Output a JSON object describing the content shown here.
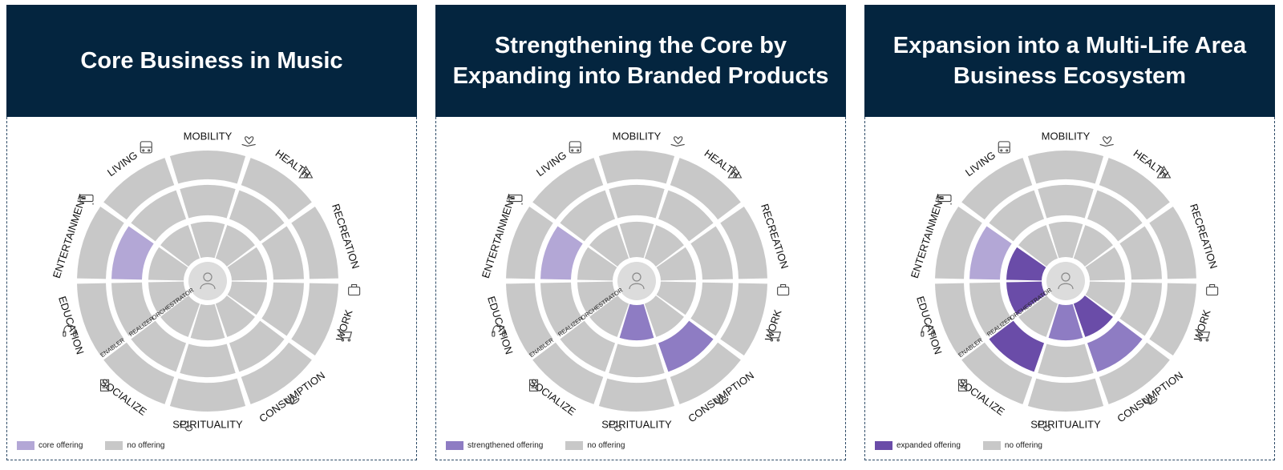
{
  "areas": [
    "MOBILITY",
    "HEALTH",
    "RECREATION",
    "WORK",
    "CONSUMPTION",
    "SPIRITUALITY",
    "SOCIALIZE",
    "EDUCATION",
    "ENTERTAINMENT",
    "LIVING"
  ],
  "area_icons": [
    "bus-icon",
    "heart-hand-icon",
    "tent-icon",
    "briefcase-icon",
    "cart-icon",
    "lotus-icon",
    "chat-bubbles-icon",
    "book-icon",
    "headphones-icon",
    "bed-icon"
  ],
  "ring_labels": [
    "ENABLER",
    "REALIZER",
    "ORCHESTRATOR"
  ],
  "colors": {
    "no_offering": "#c8c8c8",
    "core": "#b3a7d6",
    "strengthened": "#8e7cc3",
    "expanded": "#6a4ca8",
    "header": "#04253f"
  },
  "panels": [
    {
      "title": "Core Business in Music",
      "legend": [
        {
          "label": "core offering",
          "color": "#b3a7d6"
        },
        {
          "label": "no offering",
          "color": "#c8c8c8"
        }
      ],
      "highlights": [
        {
          "area": "ENTERTAINMENT",
          "ring": "REALIZER",
          "color": "#b3a7d6"
        }
      ]
    },
    {
      "title": "Strengthening the Core by Expanding into Branded Products",
      "legend": [
        {
          "label": "strengthened offering",
          "color": "#8e7cc3"
        },
        {
          "label": "no offering",
          "color": "#c8c8c8"
        }
      ],
      "highlights": [
        {
          "area": "ENTERTAINMENT",
          "ring": "REALIZER",
          "color": "#b3a7d6"
        },
        {
          "area": "SPIRITUALITY",
          "ring": "ORCHESTRATOR",
          "color": "#8e7cc3"
        },
        {
          "area": "CONSUMPTION",
          "ring": "REALIZER",
          "color": "#8e7cc3"
        }
      ]
    },
    {
      "title": "Expansion into a Multi-Life Area Business Ecosystem",
      "legend": [
        {
          "label": "expanded offering",
          "color": "#6a4ca8"
        },
        {
          "label": "no offering",
          "color": "#c8c8c8"
        }
      ],
      "highlights": [
        {
          "area": "ENTERTAINMENT",
          "ring": "REALIZER",
          "color": "#b3a7d6"
        },
        {
          "area": "ENTERTAINMENT",
          "ring": "ORCHESTRATOR",
          "color": "#6a4ca8"
        },
        {
          "area": "EDUCATION",
          "ring": "ORCHESTRATOR",
          "color": "#6a4ca8"
        },
        {
          "area": "SOCIALIZE",
          "ring": "REALIZER",
          "color": "#6a4ca8"
        },
        {
          "area": "SPIRITUALITY",
          "ring": "ORCHESTRATOR",
          "color": "#8e7cc3"
        },
        {
          "area": "CONSUMPTION",
          "ring": "ORCHESTRATOR",
          "color": "#6a4ca8"
        },
        {
          "area": "CONSUMPTION",
          "ring": "REALIZER",
          "color": "#8e7cc3"
        }
      ]
    }
  ]
}
